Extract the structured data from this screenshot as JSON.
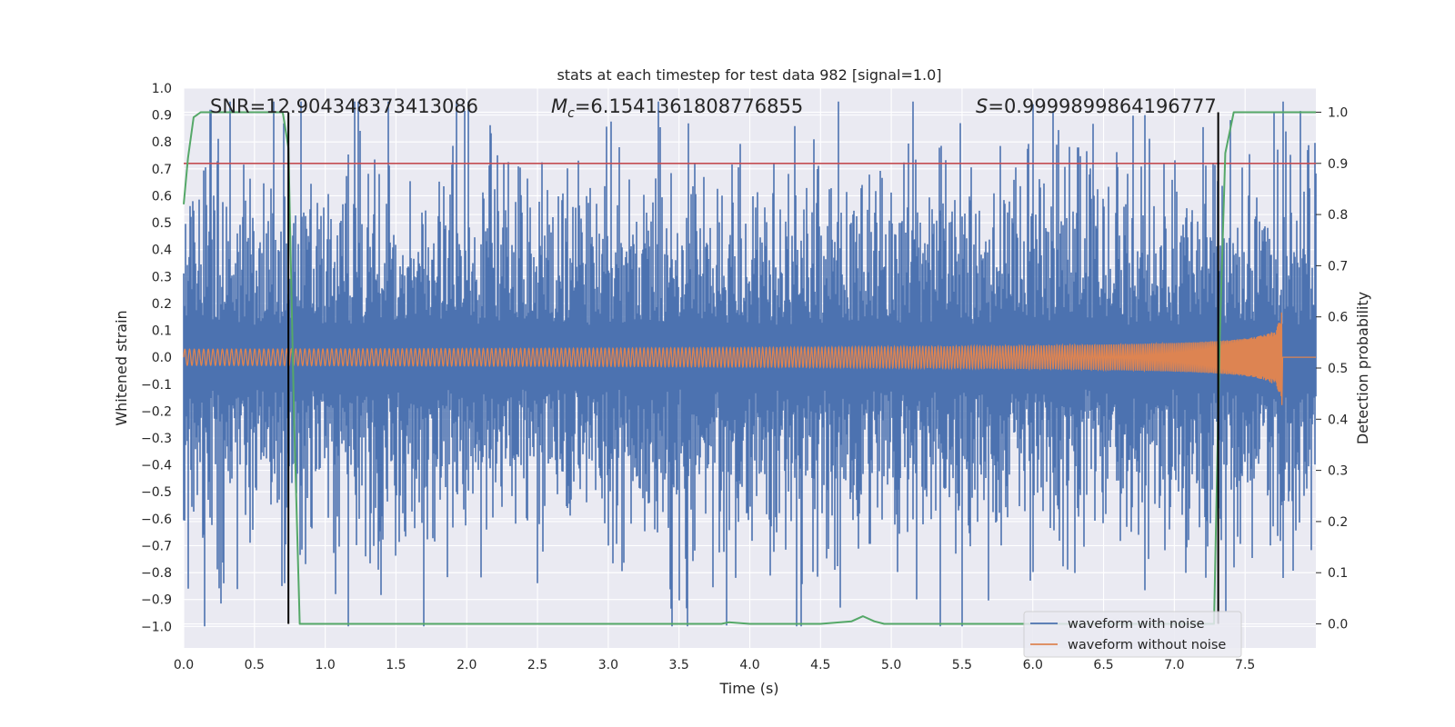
{
  "chart_data": {
    "type": "line",
    "title": "stats at each timestep for test data 982 [signal=1.0]",
    "xlabel": "Time (s)",
    "ylabel": "Whitened strain",
    "y2label": "Detection probability",
    "xlim": [
      0.0,
      8.0
    ],
    "ylim": [
      -1.08,
      1.0
    ],
    "y2lim": [
      -0.047,
      1.047
    ],
    "x_ticks": [
      "0.0",
      "0.5",
      "1.0",
      "1.5",
      "2.0",
      "2.5",
      "3.0",
      "3.5",
      "4.0",
      "4.5",
      "5.0",
      "5.5",
      "6.0",
      "6.5",
      "7.0",
      "7.5"
    ],
    "x_tick_values": [
      0.0,
      0.5,
      1.0,
      1.5,
      2.0,
      2.5,
      3.0,
      3.5,
      4.0,
      4.5,
      5.0,
      5.5,
      6.0,
      6.5,
      7.0,
      7.5
    ],
    "y_ticks": [
      "1.0",
      "0.9",
      "0.8",
      "0.7",
      "0.6",
      "0.5",
      "0.4",
      "0.3",
      "0.2",
      "0.1",
      "0.0",
      "−0.1",
      "−0.2",
      "−0.3",
      "−0.4",
      "−0.5",
      "−0.6",
      "−0.7",
      "−0.8",
      "−0.9",
      "−1.0"
    ],
    "y_tick_values": [
      1.0,
      0.9,
      0.8,
      0.7,
      0.6,
      0.5,
      0.4,
      0.3,
      0.2,
      0.1,
      0.0,
      -0.1,
      -0.2,
      -0.3,
      -0.4,
      -0.5,
      -0.6,
      -0.7,
      -0.8,
      -0.9,
      -1.0
    ],
    "y2_ticks": [
      "1.0",
      "0.9",
      "0.8",
      "0.7",
      "0.6",
      "0.5",
      "0.4",
      "0.3",
      "0.2",
      "0.1",
      "0.0"
    ],
    "y2_tick_values": [
      1.0,
      0.9,
      0.8,
      0.7,
      0.6,
      0.5,
      0.4,
      0.3,
      0.2,
      0.1,
      0.0
    ],
    "grid": true,
    "legend_position": "lower-right",
    "series": [
      {
        "name": "waveform with noise",
        "color": "#4c72b0",
        "axis": "left",
        "description_envelope": {
          "typical_amplitude": 0.35,
          "max_peaks": [
            [
              0.19,
              0.92
            ],
            [
              6.79,
              0.9
            ],
            [
              6.17,
              0.79
            ],
            [
              6.32,
              0.78
            ],
            [
              7.94,
              0.77
            ],
            [
              3.56,
              -1.0
            ],
            [
              4.64,
              -0.93
            ],
            [
              0.03,
              -0.86
            ],
            [
              5.98,
              -0.83
            ],
            [
              7.77,
              -0.82
            ]
          ]
        }
      },
      {
        "name": "waveform without noise",
        "color": "#dd8452",
        "axis": "left",
        "chirp": {
          "start_amplitude": 0.03,
          "end_time": 7.76,
          "end_amplitude": 0.34,
          "start_frequency": 30,
          "end_frequency": 200
        }
      },
      {
        "name": "",
        "color": "#55a868",
        "axis": "right",
        "x": [
          0.0,
          0.03,
          0.07,
          0.12,
          0.2,
          0.35,
          0.5,
          0.7,
          0.74,
          0.78,
          0.82,
          0.86,
          1.0,
          2.0,
          3.0,
          3.8,
          3.85,
          4.0,
          4.5,
          4.72,
          4.8,
          4.88,
          4.95,
          5.5,
          6.0,
          7.0,
          7.28,
          7.32,
          7.36,
          7.42,
          7.5,
          8.0
        ],
        "y": [
          0.82,
          0.91,
          0.99,
          1.0,
          1.0,
          1.0,
          1.0,
          1.0,
          0.93,
          0.4,
          0.0,
          0.0,
          0.0,
          0.0,
          0.0,
          0.0,
          0.003,
          0.0,
          0.0,
          0.005,
          0.015,
          0.005,
          0.0,
          0.0,
          0.0,
          0.0,
          0.0,
          0.55,
          0.92,
          1.0,
          1.0,
          1.0
        ]
      }
    ],
    "threshold": {
      "color": "#c44e52",
      "y2": 0.9
    },
    "markers": {
      "color": "#000000",
      "x": [
        0.74,
        7.31
      ],
      "y2_range": [
        0.0,
        1.0
      ]
    },
    "annotations": [
      {
        "text": "SNR=12.904348373413086",
        "x": 0.19,
        "y": 0.92
      },
      {
        "text_symbol": "M",
        "text_sub": "c",
        "text_rest": "=6.1541361808776855",
        "x": 2.6,
        "y": 0.92
      },
      {
        "text_symbol": "S",
        "text_rest": "=0.9999899864196777",
        "x": 5.67,
        "y": 0.92
      }
    ]
  }
}
